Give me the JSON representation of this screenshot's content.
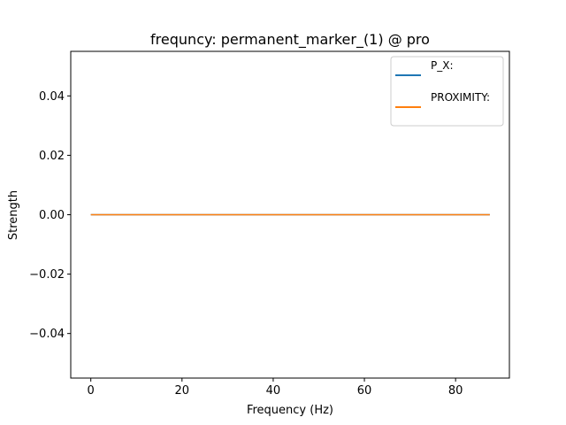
{
  "chart_data": {
    "type": "line",
    "title": "frequncy: permanent_marker_(1) @ pro",
    "xlabel": "Frequency (Hz)",
    "ylabel": "Strength",
    "xlim": [
      -4.4,
      91.8
    ],
    "ylim": [
      -0.055,
      0.055
    ],
    "x_ticks": [
      0,
      20,
      40,
      60,
      80
    ],
    "x_tick_labels": [
      "0",
      "20",
      "40",
      "60",
      "80"
    ],
    "y_ticks": [
      -0.04,
      -0.02,
      0.0,
      0.02,
      0.04
    ],
    "y_tick_labels": [
      "−0.04",
      "−0.02",
      "0.00",
      "0.02",
      "0.04"
    ],
    "grid": false,
    "legend_position": "top-right",
    "series": [
      {
        "name": "P_X:",
        "color": "#1f77b4",
        "x": [
          0,
          87.5
        ],
        "y": [
          0,
          0
        ]
      },
      {
        "name": "PROXIMITY:",
        "color": "#ff7f0e",
        "x": [
          0,
          87.5
        ],
        "y": [
          0,
          0
        ]
      }
    ]
  }
}
